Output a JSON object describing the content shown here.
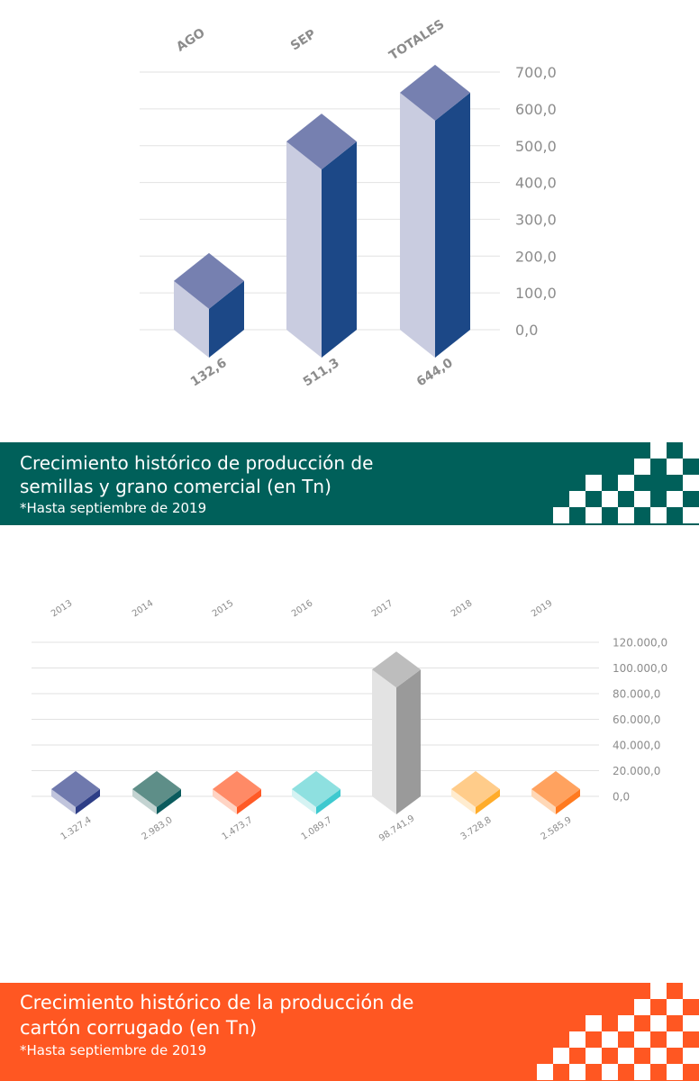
{
  "charts": {
    "production_seeds": {
      "chart_data": {
        "type": "bar",
        "categories": [
          "AGO",
          "SEP",
          "TOTALES"
        ],
        "values": [
          132.6,
          511.3,
          644.0
        ],
        "value_labels": [
          "132,6",
          "511,3",
          "644,0"
        ],
        "ylim": [
          0,
          700
        ],
        "yticks": [
          "0,0",
          "100,0",
          "200,0",
          "300,0",
          "400,0",
          "500,0",
          "600,0",
          "700,0"
        ],
        "grid": true,
        "legend": "none"
      },
      "colors": {
        "top": "#7680b0",
        "front": "#c9cce0",
        "side": "#1c4887"
      }
    },
    "production_cardboard": {
      "chart_data": {
        "type": "bar",
        "categories": [
          "2013",
          "2014",
          "2015",
          "2016",
          "2017",
          "2018",
          "2019"
        ],
        "values": [
          1327.4,
          2983.0,
          1473.7,
          1089.7,
          98741.9,
          3728.8,
          2585.9
        ],
        "value_labels": [
          "1.327,4",
          "2.983,0",
          "1.473,7",
          "1.089,7",
          "98.741,9",
          "3.728,8",
          "2.585,9"
        ],
        "ylim": [
          0,
          120000
        ],
        "yticks": [
          "0,0",
          "20.000,0",
          "40.000,0",
          "60.000,0",
          "80.000,0",
          "100.000,0",
          "120.000,0"
        ],
        "grid": true,
        "legend": "none"
      },
      "bar_colors": [
        {
          "top": "#6f79ad",
          "front": "#c0c4dc",
          "side": "#2d3d86"
        },
        {
          "top": "#5e8e88",
          "front": "#c3d3d1",
          "side": "#0b5b5d"
        },
        {
          "top": "#ff8a66",
          "front": "#ffd4c4",
          "side": "#ff5a26"
        },
        {
          "top": "#8ee0e0",
          "front": "#d5f3f3",
          "side": "#3ec9cf"
        },
        {
          "top": "#bdbdbd",
          "front": "#e3e3e3",
          "side": "#9a9a9a"
        },
        {
          "top": "#ffcc8a",
          "front": "#ffeccf",
          "side": "#ffac2a"
        },
        {
          "top": "#ffa25f",
          "front": "#ffd8b7",
          "side": "#ff7a1f"
        }
      ]
    }
  },
  "banners": {
    "seeds": {
      "title": "Crecimiento histórico de producción de semillas y grano comercial (en Tn)",
      "subtitle": "*Hasta septiembre de 2019",
      "color": "#00605a"
    },
    "cardboard": {
      "title": "Crecimiento histórico de la producción de cartón corrugado (en Tn)",
      "subtitle": "*Hasta septiembre de 2019",
      "color": "#ff5722"
    }
  }
}
